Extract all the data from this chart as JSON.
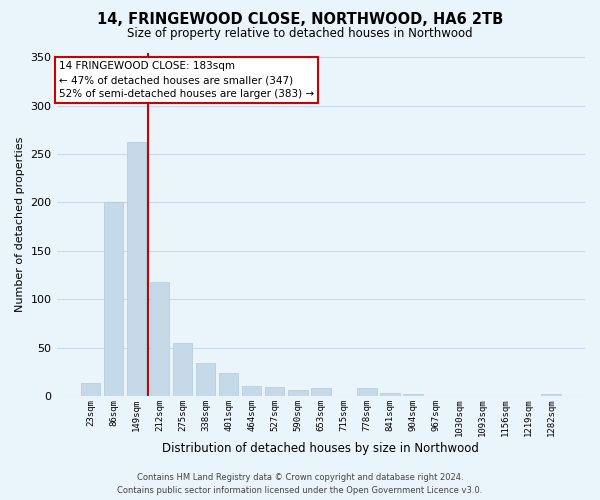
{
  "title": "14, FRINGEWOOD CLOSE, NORTHWOOD, HA6 2TB",
  "subtitle": "Size of property relative to detached houses in Northwood",
  "xlabel": "Distribution of detached houses by size in Northwood",
  "ylabel": "Number of detached properties",
  "categories": [
    "23sqm",
    "86sqm",
    "149sqm",
    "212sqm",
    "275sqm",
    "338sqm",
    "401sqm",
    "464sqm",
    "527sqm",
    "590sqm",
    "653sqm",
    "715sqm",
    "778sqm",
    "841sqm",
    "904sqm",
    "967sqm",
    "1030sqm",
    "1093sqm",
    "1156sqm",
    "1219sqm",
    "1282sqm"
  ],
  "values": [
    13,
    200,
    262,
    118,
    55,
    34,
    24,
    10,
    9,
    6,
    8,
    0,
    8,
    3,
    2,
    0,
    0,
    0,
    0,
    0,
    2
  ],
  "bar_color": "#c5d9e8",
  "bar_edgecolor": "#b0cad8",
  "vline_color": "#cc0000",
  "annotation_title": "14 FRINGEWOOD CLOSE: 183sqm",
  "annotation_line1": "← 47% of detached houses are smaller (347)",
  "annotation_line2": "52% of semi-detached houses are larger (383) →",
  "annotation_box_color": "#ffffff",
  "annotation_box_edgecolor": "#cc0000",
  "ylim": [
    0,
    355
  ],
  "footer1": "Contains HM Land Registry data © Crown copyright and database right 2024.",
  "footer2": "Contains public sector information licensed under the Open Government Licence v3.0.",
  "background_color": "#eaf4fb",
  "grid_color": "#c5daea"
}
